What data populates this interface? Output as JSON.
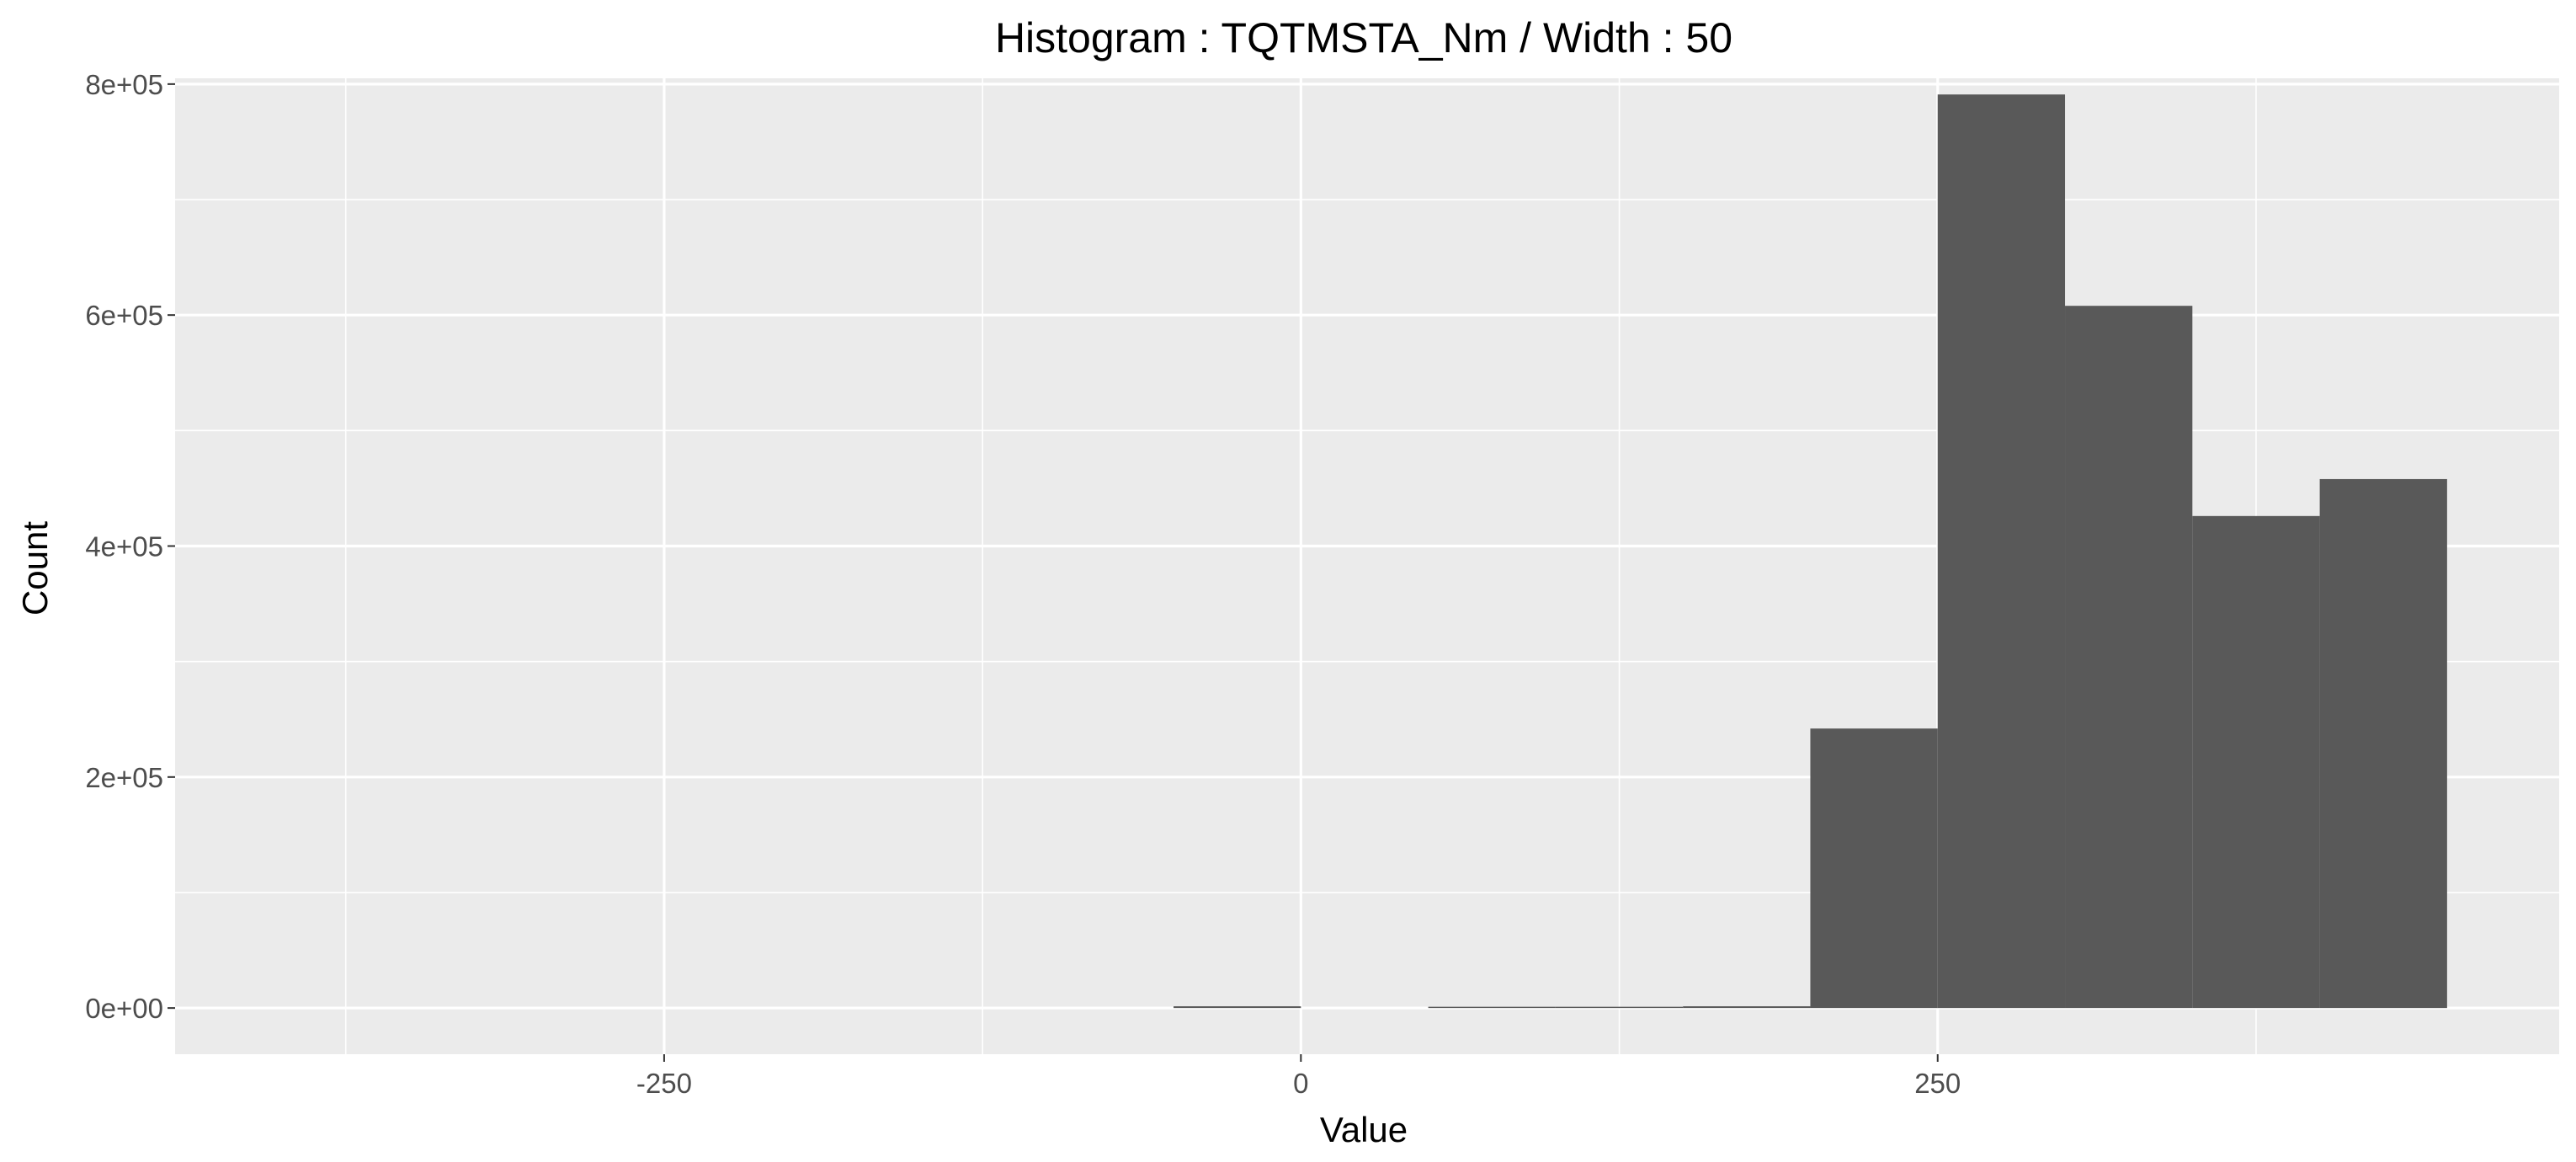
{
  "chart_data": {
    "type": "bar",
    "title": "Histogram : TQTMSTA_Nm / Width : 50",
    "xlabel": "Value",
    "ylabel": "Count",
    "bin_width": 50,
    "xlim": [
      -442,
      494
    ],
    "ylim": [
      -40000,
      805000
    ],
    "x_ticks": [
      -250,
      0,
      250
    ],
    "x_tick_labels": [
      "-250",
      "0",
      "250"
    ],
    "x_minor_ticks": [
      -375,
      -125,
      125,
      375
    ],
    "y_ticks": [
      0,
      200000,
      400000,
      600000,
      800000
    ],
    "y_tick_labels": [
      "0e+00",
      "2e+05",
      "4e+05",
      "6e+05",
      "8e+05"
    ],
    "y_minor_ticks": [
      100000,
      300000,
      500000,
      700000
    ],
    "grid": true,
    "legend": "none",
    "bar_color": "#595959",
    "panel_color": "#ebebeb",
    "grid_color": "#ffffff",
    "bins": [
      {
        "x0": -50,
        "x1": 0,
        "count": 1500
      },
      {
        "x0": 50,
        "x1": 100,
        "count": 600
      },
      {
        "x0": 100,
        "x1": 150,
        "count": 1000
      },
      {
        "x0": 150,
        "x1": 200,
        "count": 1500
      },
      {
        "x0": 200,
        "x1": 250,
        "count": 242000
      },
      {
        "x0": 250,
        "x1": 300,
        "count": 791000
      },
      {
        "x0": 300,
        "x1": 350,
        "count": 608000
      },
      {
        "x0": 350,
        "x1": 400,
        "count": 426000
      },
      {
        "x0": 400,
        "x1": 450,
        "count": 458000
      }
    ]
  }
}
